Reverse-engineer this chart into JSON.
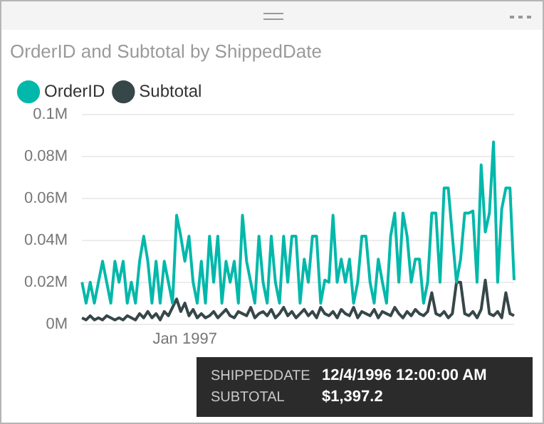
{
  "chart_data": {
    "type": "line",
    "title": "OrderID and Subtotal by ShippedDate",
    "categories": [
      null,
      null,
      null,
      null,
      null,
      null,
      null,
      null,
      null,
      null,
      null,
      null,
      null,
      null,
      null,
      null,
      null,
      null,
      null,
      null,
      null,
      null,
      null,
      null,
      null,
      "Jan 1997",
      null,
      null,
      null,
      null,
      null,
      null,
      null,
      null,
      null,
      null,
      null,
      null,
      null,
      null,
      null,
      null,
      null,
      null,
      null,
      null,
      null,
      null,
      null,
      null,
      null,
      null,
      null,
      null,
      null,
      null,
      null,
      null,
      null,
      null,
      null,
      null,
      null,
      null,
      null,
      null,
      null,
      null,
      null,
      null,
      null,
      null,
      null,
      null,
      null,
      null,
      null,
      null,
      null,
      null,
      null,
      null,
      null,
      null,
      null,
      null,
      null,
      null,
      null,
      null,
      null,
      null,
      null,
      null,
      null,
      null,
      null,
      null,
      null,
      null,
      null,
      null,
      null,
      null,
      null,
      null
    ],
    "series": [
      {
        "name": "OrderID",
        "color": "#01b8aa",
        "values": [
          20000,
          10000,
          20000,
          10000,
          20000,
          30000,
          20000,
          10000,
          30000,
          20000,
          30000,
          10000,
          20000,
          10000,
          30000,
          42000,
          30000,
          10000,
          30000,
          10000,
          30000,
          20000,
          10000,
          52000,
          42000,
          30000,
          42000,
          20000,
          10000,
          30000,
          10000,
          42000,
          20000,
          42000,
          10000,
          30000,
          20000,
          30000,
          10000,
          52000,
          30000,
          20000,
          10000,
          42000,
          20000,
          10000,
          42000,
          20000,
          10000,
          42000,
          20000,
          42000,
          42000,
          10000,
          31000,
          20000,
          42000,
          42000,
          10000,
          21000,
          20000,
          52000,
          20000,
          31000,
          20000,
          31000,
          10000,
          20000,
          42000,
          42000,
          20000,
          10000,
          31000,
          20000,
          10000,
          42000,
          53000,
          20000,
          53000,
          42000,
          20000,
          31000,
          31000,
          10000,
          20000,
          53000,
          53000,
          20000,
          65000,
          65000,
          42000,
          20000,
          31000,
          53000,
          53000,
          54000,
          20000,
          76000,
          44000,
          53000,
          87000,
          20000,
          55000,
          65000,
          65000,
          21000
        ]
      },
      {
        "name": "Subtotal",
        "color": "#374649",
        "values": [
          3000,
          2000,
          4000,
          2000,
          3000,
          2000,
          4000,
          3000,
          2000,
          3000,
          2000,
          4000,
          3000,
          2000,
          5000,
          3000,
          6000,
          3000,
          5000,
          2000,
          6000,
          4000,
          8000,
          12000,
          6000,
          10000,
          4000,
          7000,
          3000,
          5000,
          3000,
          4000,
          6000,
          3000,
          5000,
          7000,
          4000,
          3000,
          6000,
          5000,
          4000,
          8000,
          3000,
          5000,
          6000,
          4000,
          7000,
          3000,
          5000,
          8000,
          4000,
          6000,
          3000,
          5000,
          7000,
          4000,
          6000,
          3000,
          8000,
          5000,
          4000,
          6000,
          3000,
          7000,
          5000,
          4000,
          8000,
          3000,
          6000,
          5000,
          4000,
          7000,
          3000,
          6000,
          5000,
          4000,
          8000,
          5000,
          3000,
          6000,
          4000,
          7000,
          5000,
          4000,
          6000,
          15000,
          5000,
          4000,
          6000,
          3000,
          5000,
          20000,
          20000,
          5000,
          4000,
          6000,
          3000,
          7000,
          21000,
          5000,
          4000,
          6000,
          3000,
          15000,
          5000,
          4000
        ]
      }
    ],
    "ylim": [
      0,
      100000
    ],
    "yticks": [
      {
        "value": 0,
        "label": "0M"
      },
      {
        "value": 20000,
        "label": "0.02M"
      },
      {
        "value": 40000,
        "label": "0.04M"
      },
      {
        "value": 60000,
        "label": "0.06M"
      },
      {
        "value": 80000,
        "label": "0.08M"
      },
      {
        "value": 100000,
        "label": "0.1M"
      }
    ],
    "grid": "y",
    "legend": "top left",
    "marker": "none",
    "line_style": "solid",
    "annotations": [
      "SHIPPEDDATE",
      "12/4/1996 12:00:00 AM",
      "SUBTOTAL",
      "$1,397.2"
    ]
  }
}
